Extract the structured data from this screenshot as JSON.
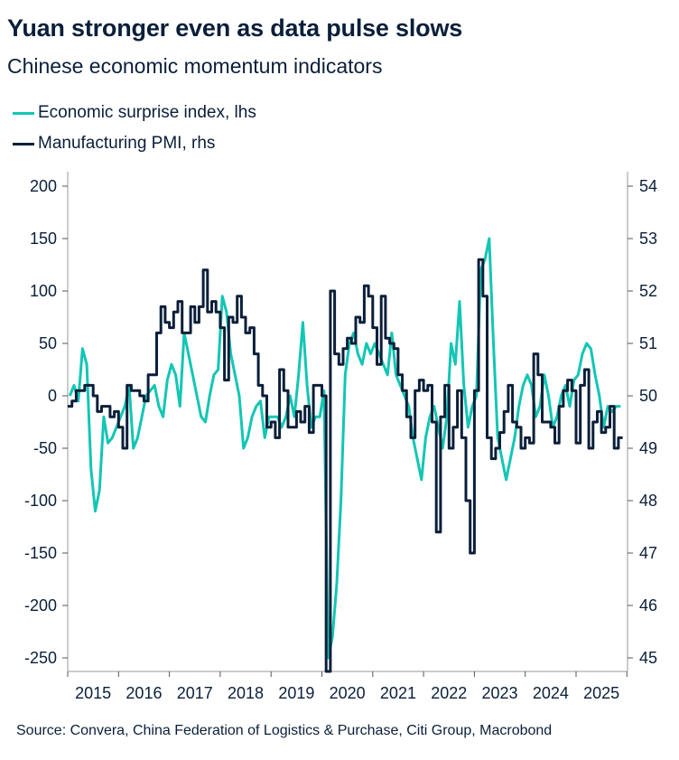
{
  "title": "Yuan stronger even as data pulse slows",
  "subtitle": "Chinese economic momentum indicators",
  "source": "Source: Convera,  China Federation of Logistics & Purchase, Citi Group, Macrobond",
  "chart_data": {
    "type": "line",
    "title": "Yuan stronger even as data pulse slows",
    "subtitle": "Chinese economic momentum indicators",
    "legend_position": "top-left",
    "grid": false,
    "x_ticks": [
      "2015",
      "2016",
      "2017",
      "2018",
      "2019",
      "2020",
      "2021",
      "2022",
      "2023",
      "2024",
      "2025"
    ],
    "x_range": [
      2015,
      2025.95
    ],
    "left_axis": {
      "ticks": [
        200,
        150,
        100,
        50,
        0,
        -50,
        -100,
        -150,
        -200,
        -250
      ],
      "ylim": [
        -260,
        215
      ]
    },
    "right_axis": {
      "ticks": [
        54,
        53,
        52,
        51,
        50,
        49,
        48,
        47,
        46,
        45
      ],
      "ylim": [
        44.8,
        54.3
      ]
    },
    "x_start": "2015-01",
    "frequency": "monthly",
    "series": [
      {
        "name": "Economic surprise index, lhs",
        "axis": "left",
        "color": "#12c6b4",
        "values": [
          0,
          10,
          -5,
          45,
          30,
          -70,
          -110,
          -90,
          -20,
          -45,
          -40,
          -30,
          -20,
          -10,
          10,
          -50,
          -40,
          -20,
          0,
          5,
          10,
          -10,
          -20,
          15,
          30,
          20,
          -10,
          60,
          40,
          20,
          0,
          -20,
          -25,
          0,
          20,
          25,
          95,
          80,
          40,
          20,
          0,
          -50,
          -40,
          -20,
          -10,
          -5,
          -40,
          -20,
          -20,
          -20,
          -30,
          -20,
          0,
          -20,
          20,
          70,
          10,
          -30,
          -20,
          -20,
          5,
          -250,
          -230,
          -180,
          -100,
          20,
          50,
          60,
          40,
          30,
          50,
          40,
          50,
          40,
          30,
          20,
          60,
          20,
          10,
          0,
          -10,
          -40,
          -60,
          -80,
          -40,
          -20,
          -10,
          -30,
          -50,
          -20,
          50,
          30,
          90,
          10,
          -30,
          -10,
          0,
          120,
          130,
          150,
          50,
          -40,
          -60,
          -80,
          -60,
          -40,
          -10,
          10,
          20,
          10,
          -20,
          -10,
          20,
          0,
          -30,
          -20,
          0,
          10,
          -10,
          15,
          20,
          40,
          50,
          45,
          20,
          0,
          -30,
          -10,
          -15,
          -10,
          -10
        ]
      },
      {
        "name": "Manufacturing PMI, rhs",
        "axis": "right",
        "color": "#0b1f3a",
        "values": [
          49.8,
          49.9,
          50.1,
          50.1,
          50.2,
          50.2,
          50.0,
          49.7,
          49.8,
          49.8,
          49.6,
          49.7,
          49.4,
          49.0,
          50.2,
          50.1,
          50.1,
          50.0,
          49.9,
          50.4,
          50.4,
          51.2,
          51.7,
          51.4,
          51.3,
          51.6,
          51.8,
          51.2,
          51.2,
          51.7,
          51.4,
          51.7,
          52.4,
          51.6,
          51.8,
          51.6,
          51.3,
          50.3,
          51.5,
          51.4,
          51.9,
          51.5,
          51.2,
          51.3,
          50.8,
          50.2,
          50.0,
          49.4,
          49.5,
          49.2,
          50.5,
          50.1,
          49.4,
          49.4,
          49.7,
          49.5,
          49.8,
          49.3,
          50.2,
          50.2,
          50.0,
          35.7,
          52.0,
          50.8,
          50.6,
          50.9,
          51.1,
          51.0,
          51.5,
          51.4,
          52.1,
          51.9,
          51.3,
          50.6,
          51.9,
          51.1,
          51.0,
          50.9,
          50.4,
          50.1,
          49.6,
          49.2,
          50.1,
          50.3,
          50.1,
          50.2,
          49.5,
          47.4,
          49.6,
          50.2,
          49.0,
          49.4,
          50.1,
          49.2,
          48.0,
          47.0,
          50.1,
          52.6,
          51.9,
          49.2,
          48.8,
          49.0,
          49.3,
          49.7,
          50.2,
          49.5,
          49.4,
          49.0,
          49.2,
          49.1,
          50.8,
          50.4,
          49.5,
          49.5,
          49.4,
          49.1,
          49.8,
          50.1,
          50.3,
          50.1,
          49.1,
          50.2,
          50.5,
          49.0,
          49.5,
          49.7,
          49.3,
          49.4,
          49.8,
          49.0,
          49.2
        ]
      }
    ]
  }
}
